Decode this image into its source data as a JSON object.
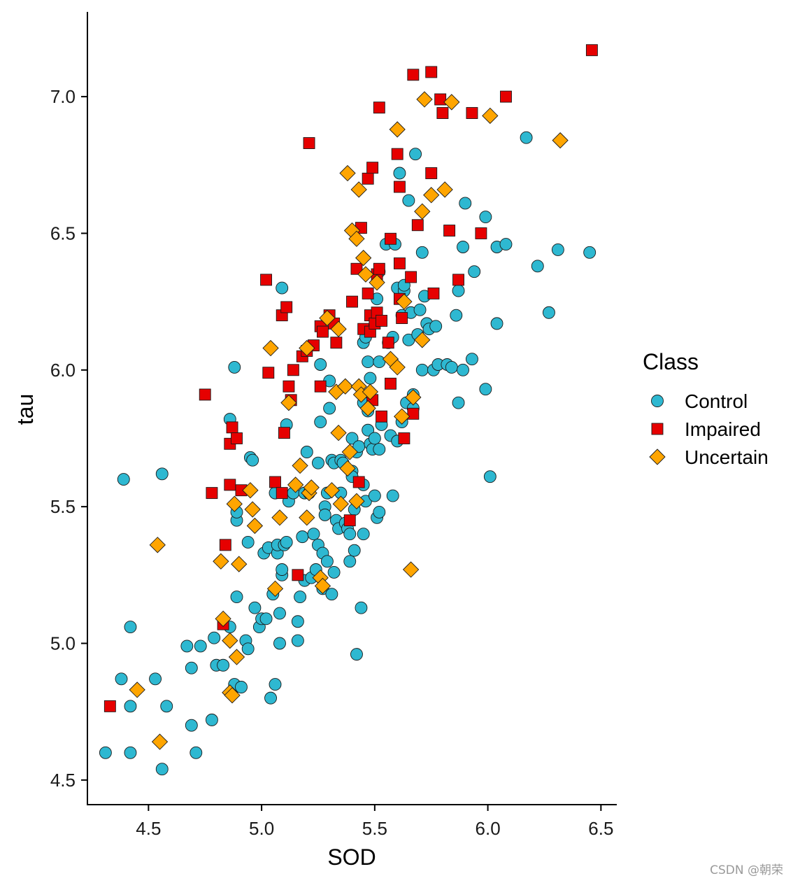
{
  "chart_data": {
    "type": "scatter",
    "xlabel": "SOD",
    "ylabel": "tau",
    "xlim": [
      4.23,
      6.57
    ],
    "ylim": [
      4.41,
      7.31
    ],
    "x_ticks": [
      4.5,
      5.0,
      5.5,
      6.0,
      6.5
    ],
    "x_tick_labels": [
      "4.5",
      "5.0",
      "5.5",
      "6.0",
      "6.5"
    ],
    "y_ticks": [
      4.5,
      5.0,
      5.5,
      6.0,
      6.5,
      7.0
    ],
    "y_tick_labels": [
      "4.5",
      "5.0",
      "5.5",
      "6.0",
      "6.5",
      "7.0"
    ],
    "grid": false,
    "legend": {
      "title": "Class",
      "position": "right"
    },
    "series": [
      {
        "name": "Control",
        "shape": "circle",
        "color": "#2EB8D1",
        "points": [
          [
            4.31,
            4.6
          ],
          [
            4.38,
            4.87
          ],
          [
            4.39,
            5.6
          ],
          [
            4.42,
            4.6
          ],
          [
            4.42,
            4.77
          ],
          [
            4.42,
            5.06
          ],
          [
            4.53,
            4.87
          ],
          [
            4.56,
            4.54
          ],
          [
            4.56,
            5.62
          ],
          [
            4.58,
            4.77
          ],
          [
            4.67,
            4.99
          ],
          [
            4.69,
            4.7
          ],
          [
            4.69,
            4.91
          ],
          [
            4.71,
            4.6
          ],
          [
            4.73,
            4.99
          ],
          [
            4.78,
            4.72
          ],
          [
            4.79,
            5.02
          ],
          [
            4.8,
            4.92
          ],
          [
            4.83,
            4.92
          ],
          [
            4.86,
            5.06
          ],
          [
            4.86,
            5.82
          ],
          [
            4.88,
            6.01
          ],
          [
            4.88,
            4.85
          ],
          [
            4.89,
            5.17
          ],
          [
            4.89,
            5.45
          ],
          [
            4.89,
            5.48
          ],
          [
            4.91,
            4.84
          ],
          [
            4.93,
            5.01
          ],
          [
            4.94,
            4.98
          ],
          [
            4.94,
            5.37
          ],
          [
            4.95,
            5.68
          ],
          [
            4.96,
            5.67
          ],
          [
            4.97,
            5.13
          ],
          [
            4.99,
            5.06
          ],
          [
            5.0,
            5.09
          ],
          [
            5.01,
            5.33
          ],
          [
            5.02,
            5.09
          ],
          [
            5.03,
            5.35
          ],
          [
            5.04,
            4.8
          ],
          [
            5.05,
            5.18
          ],
          [
            5.06,
            4.85
          ],
          [
            5.06,
            5.55
          ],
          [
            5.07,
            5.33
          ],
          [
            5.07,
            5.36
          ],
          [
            5.08,
            5.11
          ],
          [
            5.08,
            5.0
          ],
          [
            5.09,
            5.25
          ],
          [
            5.09,
            5.27
          ],
          [
            5.09,
            6.3
          ],
          [
            5.1,
            5.36
          ],
          [
            5.11,
            5.37
          ],
          [
            5.11,
            5.8
          ],
          [
            5.12,
            5.52
          ],
          [
            5.14,
            5.55
          ],
          [
            5.16,
            5.08
          ],
          [
            5.16,
            5.01
          ],
          [
            5.17,
            5.17
          ],
          [
            5.18,
            5.39
          ],
          [
            5.19,
            5.55
          ],
          [
            5.19,
            5.23
          ],
          [
            5.2,
            5.7
          ],
          [
            5.21,
            5.55
          ],
          [
            5.22,
            5.24
          ],
          [
            5.23,
            5.4
          ],
          [
            5.24,
            5.27
          ],
          [
            5.25,
            5.36
          ],
          [
            5.25,
            5.66
          ],
          [
            5.26,
            5.81
          ],
          [
            5.26,
            6.02
          ],
          [
            5.27,
            5.33
          ],
          [
            5.27,
            5.2
          ],
          [
            5.28,
            5.5
          ],
          [
            5.28,
            5.47
          ],
          [
            5.29,
            5.55
          ],
          [
            5.29,
            5.3
          ],
          [
            5.3,
            5.86
          ],
          [
            5.3,
            5.96
          ],
          [
            5.31,
            5.18
          ],
          [
            5.31,
            5.67
          ],
          [
            5.32,
            5.26
          ],
          [
            5.32,
            5.66
          ],
          [
            5.33,
            5.45
          ],
          [
            5.34,
            5.42
          ],
          [
            5.35,
            5.67
          ],
          [
            5.35,
            5.55
          ],
          [
            5.36,
            5.66
          ],
          [
            5.37,
            5.44
          ],
          [
            5.38,
            5.42
          ],
          [
            5.39,
            5.4
          ],
          [
            5.39,
            5.3
          ],
          [
            5.4,
            5.63
          ],
          [
            5.4,
            5.75
          ],
          [
            5.4,
            5.61
          ],
          [
            5.41,
            5.34
          ],
          [
            5.41,
            5.49
          ],
          [
            5.42,
            5.7
          ],
          [
            5.42,
            4.96
          ],
          [
            5.43,
            5.72
          ],
          [
            5.44,
            5.13
          ],
          [
            5.45,
            5.58
          ],
          [
            5.45,
            5.88
          ],
          [
            5.45,
            6.1
          ],
          [
            5.45,
            5.4
          ],
          [
            5.46,
            5.52
          ],
          [
            5.46,
            6.12
          ],
          [
            5.47,
            5.85
          ],
          [
            5.47,
            5.78
          ],
          [
            5.47,
            6.03
          ],
          [
            5.48,
            5.73
          ],
          [
            5.48,
            5.97
          ],
          [
            5.49,
            5.71
          ],
          [
            5.5,
            5.54
          ],
          [
            5.5,
            5.75
          ],
          [
            5.51,
            6.26
          ],
          [
            5.51,
            5.46
          ],
          [
            5.52,
            5.48
          ],
          [
            5.52,
            5.71
          ],
          [
            5.52,
            6.03
          ],
          [
            5.52,
            6.36
          ],
          [
            5.53,
            5.8
          ],
          [
            5.55,
            6.46
          ],
          [
            5.56,
            6.1
          ],
          [
            5.57,
            5.76
          ],
          [
            5.58,
            5.54
          ],
          [
            5.58,
            6.12
          ],
          [
            5.59,
            6.46
          ],
          [
            5.6,
            5.74
          ],
          [
            5.6,
            6.3
          ],
          [
            5.61,
            6.72
          ],
          [
            5.62,
            5.81
          ],
          [
            5.62,
            6.2
          ],
          [
            5.63,
            6.29
          ],
          [
            5.63,
            6.31
          ],
          [
            5.64,
            5.88
          ],
          [
            5.65,
            6.11
          ],
          [
            5.65,
            6.62
          ],
          [
            5.66,
            6.21
          ],
          [
            5.67,
            5.86
          ],
          [
            5.67,
            5.91
          ],
          [
            5.68,
            6.79
          ],
          [
            5.69,
            6.13
          ],
          [
            5.7,
            6.22
          ],
          [
            5.71,
            6.0
          ],
          [
            5.71,
            6.43
          ],
          [
            5.72,
            6.27
          ],
          [
            5.73,
            6.17
          ],
          [
            5.74,
            6.15
          ],
          [
            5.76,
            6.0
          ],
          [
            5.77,
            6.16
          ],
          [
            5.78,
            6.02
          ],
          [
            5.82,
            6.02
          ],
          [
            5.84,
            6.01
          ],
          [
            5.86,
            6.2
          ],
          [
            5.87,
            5.88
          ],
          [
            5.87,
            6.29
          ],
          [
            5.89,
            6.0
          ],
          [
            5.89,
            6.45
          ],
          [
            5.9,
            6.61
          ],
          [
            5.93,
            6.04
          ],
          [
            5.94,
            6.36
          ],
          [
            5.99,
            5.93
          ],
          [
            5.99,
            6.56
          ],
          [
            6.01,
            5.61
          ],
          [
            6.04,
            6.17
          ],
          [
            6.04,
            6.45
          ],
          [
            6.08,
            6.46
          ],
          [
            6.17,
            6.85
          ],
          [
            6.22,
            6.38
          ],
          [
            6.27,
            6.21
          ],
          [
            6.31,
            6.44
          ],
          [
            6.45,
            6.43
          ]
        ]
      },
      {
        "name": "Impaired",
        "shape": "square",
        "color": "#E60000",
        "points": [
          [
            4.33,
            4.77
          ],
          [
            4.75,
            5.91
          ],
          [
            4.78,
            5.55
          ],
          [
            4.83,
            5.07
          ],
          [
            4.84,
            5.36
          ],
          [
            4.86,
            5.58
          ],
          [
            4.86,
            5.73
          ],
          [
            4.87,
            5.79
          ],
          [
            4.89,
            5.75
          ],
          [
            4.91,
            5.56
          ],
          [
            5.02,
            6.33
          ],
          [
            5.03,
            5.99
          ],
          [
            5.06,
            5.59
          ],
          [
            5.09,
            6.2
          ],
          [
            5.09,
            5.55
          ],
          [
            5.1,
            5.77
          ],
          [
            5.11,
            6.23
          ],
          [
            5.12,
            5.94
          ],
          [
            5.13,
            5.89
          ],
          [
            5.14,
            6.0
          ],
          [
            5.16,
            5.25
          ],
          [
            5.18,
            6.05
          ],
          [
            5.2,
            6.07
          ],
          [
            5.21,
            6.83
          ],
          [
            5.23,
            6.09
          ],
          [
            5.26,
            6.16
          ],
          [
            5.26,
            5.94
          ],
          [
            5.27,
            6.14
          ],
          [
            5.3,
            6.2
          ],
          [
            5.32,
            6.17
          ],
          [
            5.33,
            6.1
          ],
          [
            5.39,
            5.45
          ],
          [
            5.4,
            6.25
          ],
          [
            5.42,
            6.37
          ],
          [
            5.43,
            5.59
          ],
          [
            5.44,
            6.52
          ],
          [
            5.45,
            6.15
          ],
          [
            5.47,
            6.28
          ],
          [
            5.47,
            6.7
          ],
          [
            5.48,
            6.14
          ],
          [
            5.48,
            6.2
          ],
          [
            5.49,
            6.74
          ],
          [
            5.49,
            5.89
          ],
          [
            5.5,
            6.17
          ],
          [
            5.51,
            6.21
          ],
          [
            5.51,
            6.35
          ],
          [
            5.52,
            6.37
          ],
          [
            5.52,
            6.96
          ],
          [
            5.53,
            6.18
          ],
          [
            5.53,
            5.83
          ],
          [
            5.56,
            6.1
          ],
          [
            5.57,
            5.95
          ],
          [
            5.57,
            6.48
          ],
          [
            5.6,
            6.79
          ],
          [
            5.61,
            6.26
          ],
          [
            5.61,
            6.67
          ],
          [
            5.61,
            6.39
          ],
          [
            5.62,
            6.19
          ],
          [
            5.63,
            5.75
          ],
          [
            5.66,
            6.34
          ],
          [
            5.67,
            7.08
          ],
          [
            5.67,
            5.84
          ],
          [
            5.69,
            6.53
          ],
          [
            5.75,
            7.09
          ],
          [
            5.75,
            6.72
          ],
          [
            5.76,
            6.28
          ],
          [
            5.79,
            6.99
          ],
          [
            5.8,
            6.94
          ],
          [
            5.83,
            6.51
          ],
          [
            5.87,
            6.33
          ],
          [
            5.93,
            6.94
          ],
          [
            5.97,
            6.5
          ],
          [
            6.08,
            7.0
          ],
          [
            6.46,
            7.17
          ]
        ]
      },
      {
        "name": "Uncertain",
        "shape": "diamond",
        "color": "#FFA500",
        "points": [
          [
            4.45,
            4.83
          ],
          [
            4.54,
            5.36
          ],
          [
            4.55,
            4.64
          ],
          [
            4.82,
            5.3
          ],
          [
            4.83,
            5.09
          ],
          [
            4.86,
            5.01
          ],
          [
            4.86,
            4.82
          ],
          [
            4.87,
            4.81
          ],
          [
            4.88,
            5.51
          ],
          [
            4.89,
            4.95
          ],
          [
            4.9,
            5.29
          ],
          [
            4.95,
            5.56
          ],
          [
            4.96,
            5.49
          ],
          [
            4.97,
            5.43
          ],
          [
            5.04,
            6.08
          ],
          [
            5.06,
            5.2
          ],
          [
            5.08,
            5.46
          ],
          [
            5.12,
            5.88
          ],
          [
            5.15,
            5.58
          ],
          [
            5.17,
            5.65
          ],
          [
            5.2,
            6.08
          ],
          [
            5.2,
            5.46
          ],
          [
            5.21,
            5.55
          ],
          [
            5.22,
            5.57
          ],
          [
            5.26,
            5.24
          ],
          [
            5.27,
            5.21
          ],
          [
            5.29,
            6.19
          ],
          [
            5.31,
            5.56
          ],
          [
            5.33,
            5.92
          ],
          [
            5.34,
            5.77
          ],
          [
            5.34,
            6.15
          ],
          [
            5.35,
            5.51
          ],
          [
            5.37,
            5.94
          ],
          [
            5.38,
            6.72
          ],
          [
            5.38,
            5.64
          ],
          [
            5.39,
            5.7
          ],
          [
            5.4,
            6.51
          ],
          [
            5.42,
            5.52
          ],
          [
            5.42,
            6.48
          ],
          [
            5.43,
            5.94
          ],
          [
            5.43,
            6.66
          ],
          [
            5.44,
            5.91
          ],
          [
            5.45,
            6.41
          ],
          [
            5.46,
            6.35
          ],
          [
            5.47,
            5.86
          ],
          [
            5.48,
            5.92
          ],
          [
            5.51,
            6.32
          ],
          [
            5.57,
            6.04
          ],
          [
            5.6,
            6.88
          ],
          [
            5.6,
            6.01
          ],
          [
            5.62,
            5.83
          ],
          [
            5.63,
            6.25
          ],
          [
            5.66,
            5.27
          ],
          [
            5.67,
            5.9
          ],
          [
            5.71,
            6.11
          ],
          [
            5.71,
            6.58
          ],
          [
            5.72,
            6.99
          ],
          [
            5.75,
            6.64
          ],
          [
            5.81,
            6.66
          ],
          [
            5.84,
            6.98
          ],
          [
            6.01,
            6.93
          ],
          [
            6.32,
            6.84
          ]
        ]
      }
    ]
  },
  "watermark": "CSDN @朝荣"
}
